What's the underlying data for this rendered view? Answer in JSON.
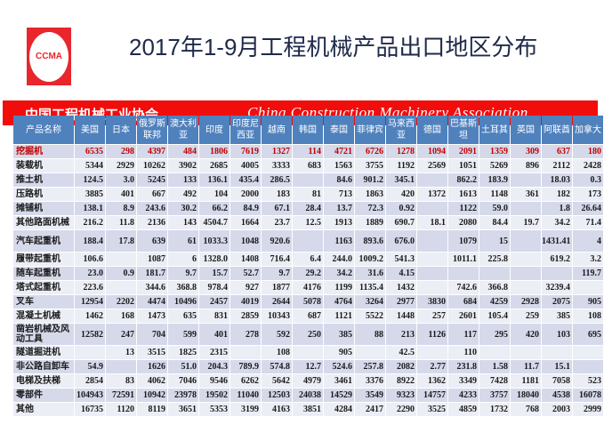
{
  "logo": {
    "text": "CCMA"
  },
  "title": "2017年1-9月工程机械产品出口地区分布",
  "banner": {
    "cn": "中国工程机械工业协会",
    "en": "China Construction Machinery Association"
  },
  "colors": {
    "header_bg": "#4f81bd",
    "highlight_text": "#c00000",
    "banner_red": "#f20d0d"
  },
  "table": {
    "columns": [
      "产品名称",
      "美国",
      "日本",
      "俄罗斯联邦",
      "澳大利亚",
      "印度",
      "印度尼西亚",
      "越南",
      "韩国",
      "泰国",
      "菲律宾",
      "马来西亚",
      "德国",
      "巴基斯坦",
      "土耳其",
      "英国",
      "阿联酋",
      "加拿大"
    ],
    "rows": [
      {
        "name": "挖掘机",
        "highlight": true,
        "values": [
          "6535",
          "298",
          "4397",
          "484",
          "1806",
          "7619",
          "1327",
          "114",
          "4721",
          "6726",
          "1278",
          "1094",
          "2091",
          "1359",
          "309",
          "637",
          "180"
        ]
      },
      {
        "name": "装载机",
        "values": [
          "5344",
          "2929",
          "10262",
          "3902",
          "2685",
          "4005",
          "3333",
          "683",
          "1563",
          "3755",
          "1192",
          "2569",
          "1051",
          "5269",
          "896",
          "2112",
          "2428"
        ]
      },
      {
        "name": "推土机",
        "values": [
          "124.5",
          "3.0",
          "5245",
          "133",
          "136.1",
          "435.4",
          "286.5",
          "",
          "84.6",
          "901.2",
          "345.1",
          "",
          "862.2",
          "183.9",
          "",
          "18.03",
          "0.3"
        ]
      },
      {
        "name": "压路机",
        "values": [
          "3885",
          "401",
          "667",
          "492",
          "104",
          "2000",
          "183",
          "81",
          "713",
          "1863",
          "420",
          "1372",
          "1613",
          "1148",
          "361",
          "182",
          "173"
        ]
      },
      {
        "name": "摊铺机",
        "values": [
          "138.1",
          "8.9",
          "243.6",
          "30.2",
          "66.2",
          "84.9",
          "67.1",
          "28.4",
          "13.7",
          "72.3",
          "0.92",
          "",
          "1122",
          "59.0",
          "",
          "1.8",
          "26.64"
        ]
      },
      {
        "name": "其他路面机械",
        "values": [
          "216.2",
          "11.8",
          "2136",
          "143",
          "4504.7",
          "1664",
          "23.7",
          "12.5",
          "1913",
          "1889",
          "690.7",
          "18.1",
          "2080",
          "84.4",
          "19.7",
          "34.2",
          "71.4"
        ]
      },
      {
        "name": "汽车起重机",
        "tall": true,
        "values": [
          "188.4",
          "17.8",
          "639",
          "61",
          "1033.3",
          "1048",
          "920.6",
          "",
          "1163",
          "893.6",
          "676.0",
          "",
          "1079",
          "15",
          "",
          "1431.41",
          "4"
        ]
      },
      {
        "name": "履带起重机",
        "values": [
          "106.6",
          "",
          "1087",
          "6",
          "1328.0",
          "1408",
          "716.4",
          "6.4",
          "244.0",
          "1009.2",
          "541.3",
          "",
          "1011.1",
          "225.8",
          "",
          "619.2",
          "3.2"
        ]
      },
      {
        "name": "随车起重机",
        "values": [
          "23.0",
          "0.9",
          "181.7",
          "9.7",
          "15.7",
          "52.7",
          "9.7",
          "29.2",
          "34.2",
          "31.6",
          "4.15",
          "",
          "",
          "",
          "",
          "",
          "119.7"
        ]
      },
      {
        "name": "塔式起重机",
        "values": [
          "223.6",
          "",
          "344.6",
          "368.8",
          "978.4",
          "927",
          "1877",
          "4176",
          "1199",
          "1135.4",
          "1432",
          "",
          "742.6",
          "366.8",
          "",
          "3239.4",
          ""
        ]
      },
      {
        "name": "叉车",
        "values": [
          "12954",
          "2202",
          "4474",
          "10496",
          "2457",
          "4019",
          "2644",
          "5078",
          "4764",
          "3264",
          "2977",
          "3830",
          "684",
          "4259",
          "2928",
          "2075",
          "905"
        ]
      },
      {
        "name": "混凝土机械",
        "values": [
          "1462",
          "168",
          "1473",
          "635",
          "831",
          "2859",
          "10343",
          "687",
          "1121",
          "5522",
          "1448",
          "257",
          "2601",
          "105.4",
          "259",
          "385",
          "108"
        ]
      },
      {
        "name": "凿岩机械及风动工具",
        "tall": true,
        "values": [
          "12582",
          "247",
          "704",
          "599",
          "401",
          "278",
          "592",
          "250",
          "385",
          "88",
          "213",
          "1126",
          "117",
          "295",
          "420",
          "103",
          "695"
        ]
      },
      {
        "name": "隧道掘进机",
        "values": [
          "",
          "13",
          "3515",
          "1825",
          "2315",
          "",
          "108",
          "",
          "905",
          "",
          "42.5",
          "",
          "110",
          "",
          "",
          "",
          ""
        ]
      },
      {
        "name": "非公路自卸车",
        "values": [
          "54.9",
          "",
          "1626",
          "51.0",
          "204.3",
          "789.9",
          "574.8",
          "12.7",
          "524.6",
          "257.8",
          "2082",
          "2.77",
          "231.8",
          "1.58",
          "11.7",
          "15.1",
          ""
        ]
      },
      {
        "name": "电梯及扶梯",
        "values": [
          "2854",
          "83",
          "4062",
          "7046",
          "9546",
          "6262",
          "5642",
          "4979",
          "3461",
          "3376",
          "8922",
          "1362",
          "3349",
          "7428",
          "1181",
          "7058",
          "523"
        ]
      },
      {
        "name": "零部件",
        "values": [
          "104943",
          "72591",
          "10942",
          "23978",
          "19502",
          "11040",
          "12503",
          "24038",
          "14529",
          "3549",
          "9323",
          "14757",
          "4233",
          "3757",
          "18040",
          "4538",
          "16078"
        ]
      },
      {
        "name": "其他",
        "values": [
          "16735",
          "1120",
          "8119",
          "3651",
          "5353",
          "3199",
          "4163",
          "3851",
          "4284",
          "2417",
          "2290",
          "3525",
          "4859",
          "1732",
          "768",
          "2003",
          "2999"
        ]
      }
    ]
  }
}
